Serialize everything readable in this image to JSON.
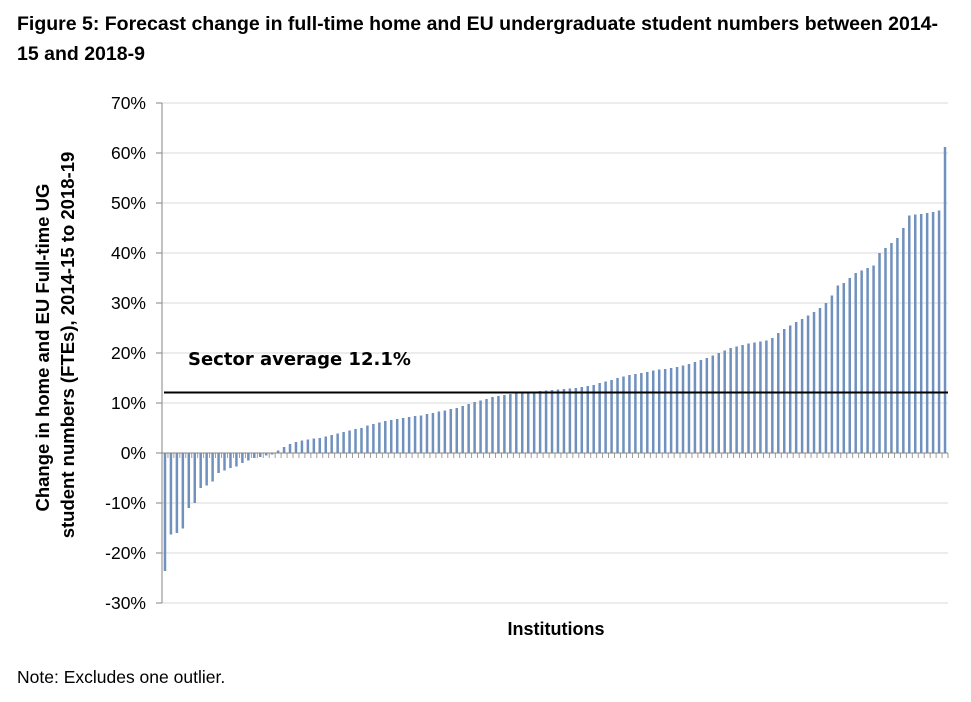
{
  "figure": {
    "title": "Figure 5: Forecast change in full-time home and EU undergraduate student numbers between 2014-15 and 2018-9",
    "note": "Note: Excludes one outlier."
  },
  "colors": {
    "bar": "#7091bd",
    "average_line": "#000000",
    "grid": "#d9d9d9",
    "axis": "#868686"
  },
  "chart_data": {
    "type": "bar",
    "title": "Figure 5: Forecast change in full-time home and EU undergraduate student numbers between 2014-15 and 2018-9",
    "xlabel": "Institutions",
    "ylabel_lines": [
      "Change in home and EU Full-time UG",
      "student numbers (FTEs), 2014-15 to 2018-19"
    ],
    "ylim": [
      -0.3,
      0.7
    ],
    "yticks": [
      -0.3,
      -0.2,
      -0.1,
      0,
      0.1,
      0.2,
      0.3,
      0.4,
      0.5,
      0.6,
      0.7
    ],
    "ytick_labels": [
      "-30%",
      "-20%",
      "-10%",
      "0%",
      "10%",
      "20%",
      "30%",
      "40%",
      "50%",
      "60%",
      "70%"
    ],
    "grid": "horizontal",
    "average": {
      "value": 0.121,
      "label": "Sector average 12.1%"
    },
    "values": [
      -0.236,
      -0.163,
      -0.16,
      -0.151,
      -0.11,
      -0.1,
      -0.07,
      -0.065,
      -0.057,
      -0.04,
      -0.035,
      -0.03,
      -0.027,
      -0.02,
      -0.015,
      -0.01,
      -0.008,
      -0.005,
      -0.003,
      0.005,
      0.012,
      0.018,
      0.022,
      0.025,
      0.027,
      0.029,
      0.03,
      0.033,
      0.036,
      0.039,
      0.042,
      0.045,
      0.048,
      0.05,
      0.055,
      0.058,
      0.061,
      0.064,
      0.066,
      0.068,
      0.07,
      0.072,
      0.074,
      0.075,
      0.078,
      0.08,
      0.083,
      0.085,
      0.088,
      0.09,
      0.094,
      0.098,
      0.102,
      0.105,
      0.108,
      0.112,
      0.114,
      0.116,
      0.118,
      0.119,
      0.12,
      0.121,
      0.122,
      0.124,
      0.125,
      0.126,
      0.127,
      0.128,
      0.129,
      0.13,
      0.132,
      0.134,
      0.136,
      0.14,
      0.143,
      0.146,
      0.15,
      0.153,
      0.156,
      0.158,
      0.16,
      0.162,
      0.165,
      0.167,
      0.168,
      0.17,
      0.172,
      0.175,
      0.178,
      0.182,
      0.186,
      0.19,
      0.195,
      0.2,
      0.205,
      0.21,
      0.213,
      0.216,
      0.219,
      0.221,
      0.223,
      0.225,
      0.23,
      0.24,
      0.248,
      0.255,
      0.262,
      0.268,
      0.275,
      0.282,
      0.29,
      0.3,
      0.315,
      0.335,
      0.34,
      0.35,
      0.36,
      0.365,
      0.37,
      0.375,
      0.4,
      0.41,
      0.42,
      0.43,
      0.45,
      0.475,
      0.477,
      0.478,
      0.48,
      0.482,
      0.485,
      0.612
    ]
  }
}
